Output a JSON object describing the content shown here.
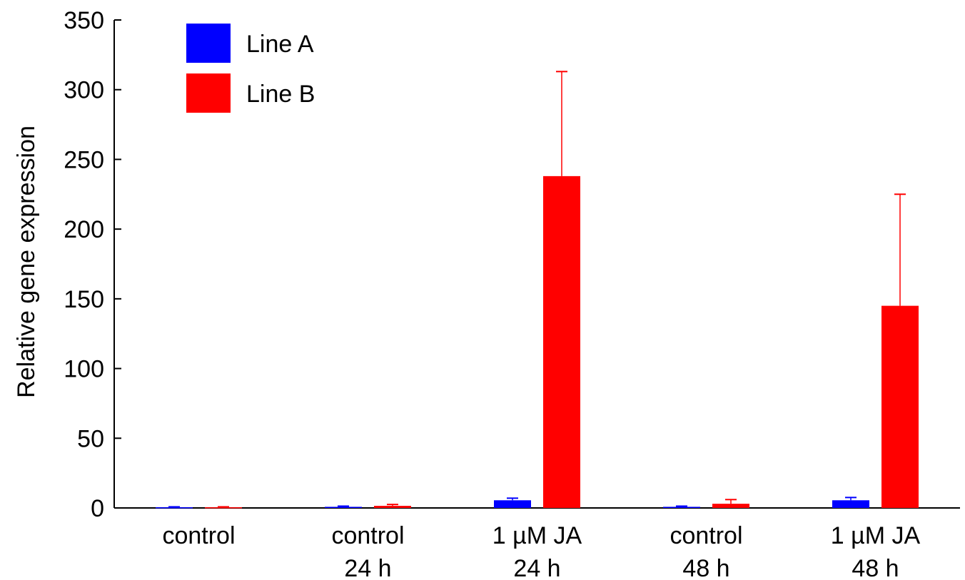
{
  "chart_data": {
    "type": "bar",
    "title": "",
    "xlabel": "",
    "ylabel": "Relative gene expression",
    "ylim": [
      0,
      350
    ],
    "yticks": [
      0,
      50,
      100,
      150,
      200,
      250,
      300,
      350
    ],
    "grid": false,
    "legend_position": "top-left",
    "categories": [
      [
        "control"
      ],
      [
        "control",
        "24 h"
      ],
      [
        "1 µM JA",
        "24 h"
      ],
      [
        "control",
        "48 h"
      ],
      [
        "1 µM JA",
        "48 h"
      ]
    ],
    "series": [
      {
        "name": "Line A",
        "color": "#0000ff",
        "values": [
          0.5,
          0.8,
          5.5,
          0.8,
          5.5
        ],
        "errors": [
          0.3,
          0.5,
          1.5,
          0.5,
          2.0
        ]
      },
      {
        "name": "Line B",
        "color": "#ff0000",
        "values": [
          0.5,
          1.5,
          238,
          3,
          145
        ],
        "errors": [
          0.3,
          1.0,
          75,
          3,
          80
        ]
      }
    ]
  }
}
